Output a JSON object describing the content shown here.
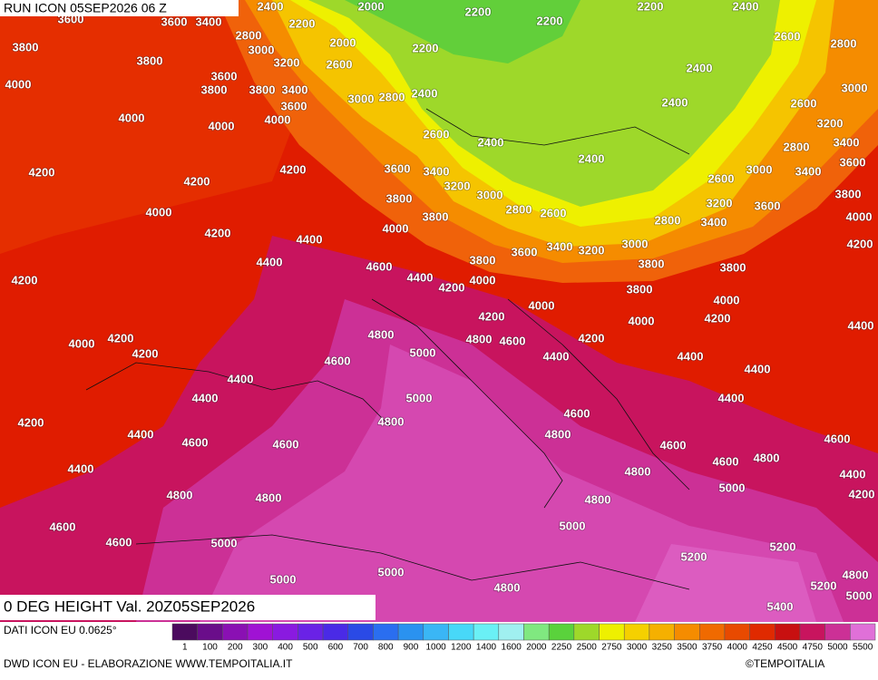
{
  "header": {
    "run": "RUN ICON 05SEP2026 06 Z",
    "title": "0 DEG HEIGHT Val. 20Z05SEP2026"
  },
  "footer": {
    "source": "DATI ICON EU 0.0625°",
    "credits": "DWD ICON EU - ELABORAZIONE WWW.TEMPOITALIA.IT",
    "copyright": "©TEMPOITALIA"
  },
  "map": {
    "contour_labels": [
      3600,
      3600,
      3400,
      2400,
      2200,
      2000,
      2200,
      2200,
      2200,
      2400,
      3800,
      2800,
      3000,
      2000,
      2200,
      2600,
      2800,
      3800,
      3200,
      2600,
      3600,
      2400,
      4000,
      3800,
      3800,
      3400,
      3000,
      2800,
      2400,
      3000,
      3600,
      2400,
      2600,
      4000,
      4000,
      4000,
      2600,
      3200,
      2400,
      3400,
      2800,
      2400,
      3600,
      4200,
      4200,
      3600,
      3400,
      3000,
      3400,
      4200,
      3200,
      2600,
      3000,
      3800,
      3800,
      2800,
      2600,
      3200,
      3600,
      4000,
      3800,
      2800,
      3400,
      4000,
      4200,
      4000,
      4400,
      3000,
      3600,
      3400,
      3200,
      4200,
      4400,
      3800,
      3800,
      3800,
      4600,
      4400,
      4000,
      4200,
      4200,
      3800,
      4000,
      4000,
      4200,
      4200,
      4000,
      4400,
      4800,
      4800,
      4600,
      4200,
      4000,
      4200,
      4200,
      5000,
      4400,
      4400,
      4600,
      4400,
      4400,
      4400,
      5000,
      4400,
      4600,
      4800,
      4200,
      4400,
      4800,
      4600,
      4600,
      4600,
      4600,
      4800,
      4600,
      4400,
      4800,
      4400,
      4800,
      4800,
      5000,
      4800,
      4200,
      4600,
      5000,
      4600,
      5000,
      5200,
      5200,
      5000,
      4800,
      5000,
      5200,
      4800,
      5000,
      5400
    ]
  },
  "legend": {
    "items": [
      {
        "value": 1,
        "color": "#4b0b5e"
      },
      {
        "value": 100,
        "color": "#6a0d8a"
      },
      {
        "value": 200,
        "color": "#8a10b3"
      },
      {
        "value": 300,
        "color": "#a012d4"
      },
      {
        "value": 400,
        "color": "#8a1ae0"
      },
      {
        "value": 500,
        "color": "#6a22e6"
      },
      {
        "value": 600,
        "color": "#4a2ae6"
      },
      {
        "value": 700,
        "color": "#2a4ae6"
      },
      {
        "value": 800,
        "color": "#2a6ef0"
      },
      {
        "value": 900,
        "color": "#2a92f0"
      },
      {
        "value": 1000,
        "color": "#3ab6f5"
      },
      {
        "value": 1200,
        "color": "#48d8f8"
      },
      {
        "value": 1400,
        "color": "#6af0f5"
      },
      {
        "value": 1600,
        "color": "#a0f0f0"
      },
      {
        "value": 2000,
        "color": "#80e880"
      },
      {
        "value": 2250,
        "color": "#5ad23c"
      },
      {
        "value": 2500,
        "color": "#9ed82a"
      },
      {
        "value": 2750,
        "color": "#eef000"
      },
      {
        "value": 3000,
        "color": "#f5d000"
      },
      {
        "value": 3250,
        "color": "#f5b000"
      },
      {
        "value": 3500,
        "color": "#f58c00"
      },
      {
        "value": 3750,
        "color": "#f06a00"
      },
      {
        "value": 4000,
        "color": "#e84a00"
      },
      {
        "value": 4250,
        "color": "#e02a00"
      },
      {
        "value": 4500,
        "color": "#c81010"
      },
      {
        "value": 4750,
        "color": "#c8145e"
      },
      {
        "value": 5000,
        "color": "#cc3096"
      },
      {
        "value": 5500,
        "color": "#e070d8"
      }
    ]
  }
}
